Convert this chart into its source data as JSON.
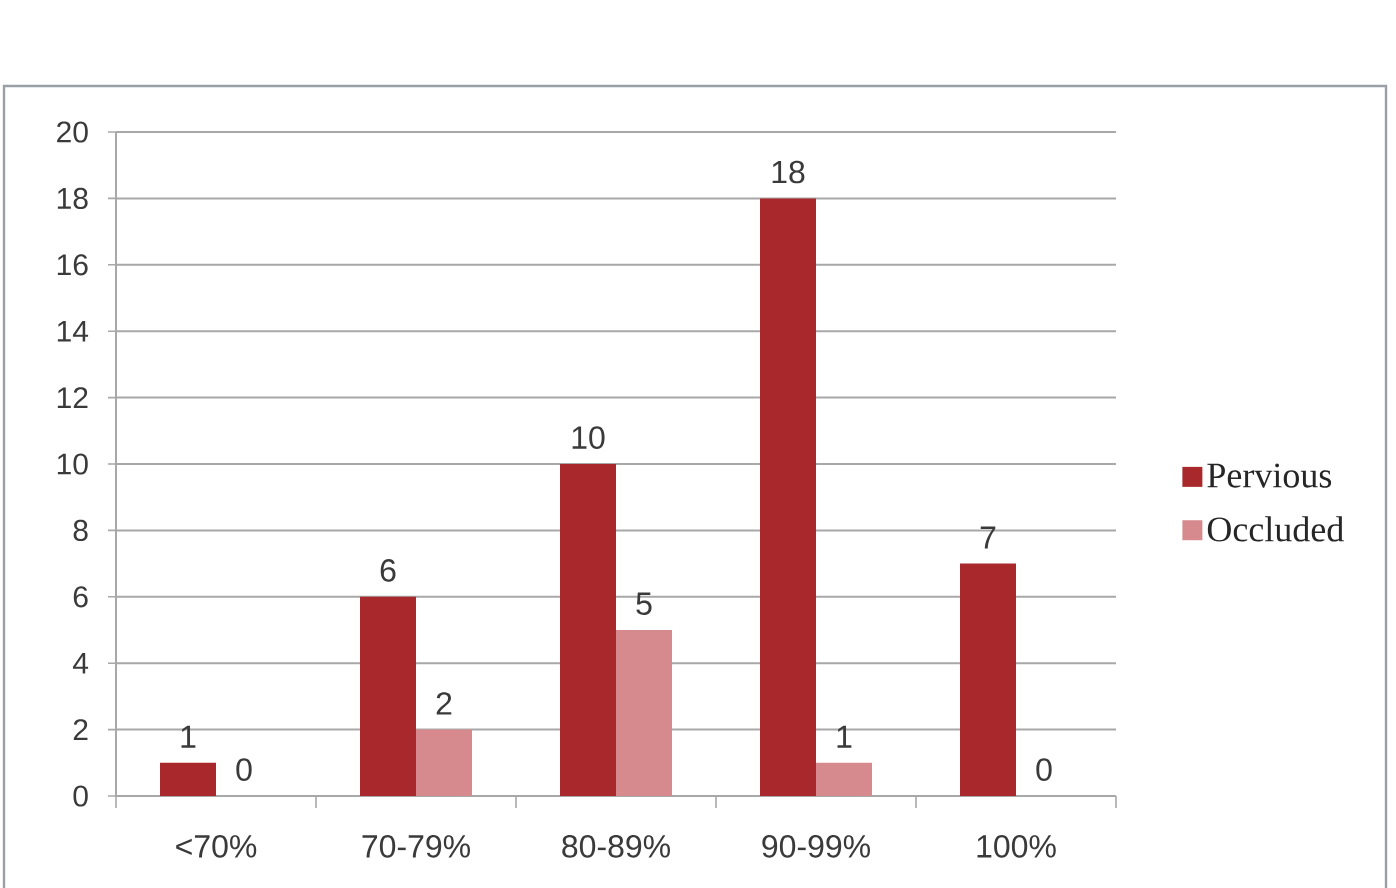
{
  "chart_data": {
    "type": "bar",
    "categories": [
      "<70%",
      "70-79%",
      "80-89%",
      "90-99%",
      "100%"
    ],
    "series": [
      {
        "name": "Pervious",
        "color": "#a8282c",
        "values": [
          1,
          6,
          10,
          18,
          7
        ]
      },
      {
        "name": "Occluded",
        "color": "#d68a8e",
        "values": [
          0,
          2,
          5,
          1,
          0
        ]
      }
    ],
    "ylim": [
      0,
      20
    ],
    "yticks": [
      0,
      2,
      4,
      6,
      8,
      10,
      12,
      14,
      16,
      18,
      20
    ],
    "grid": "y",
    "legend": "right",
    "data_labels": true
  }
}
